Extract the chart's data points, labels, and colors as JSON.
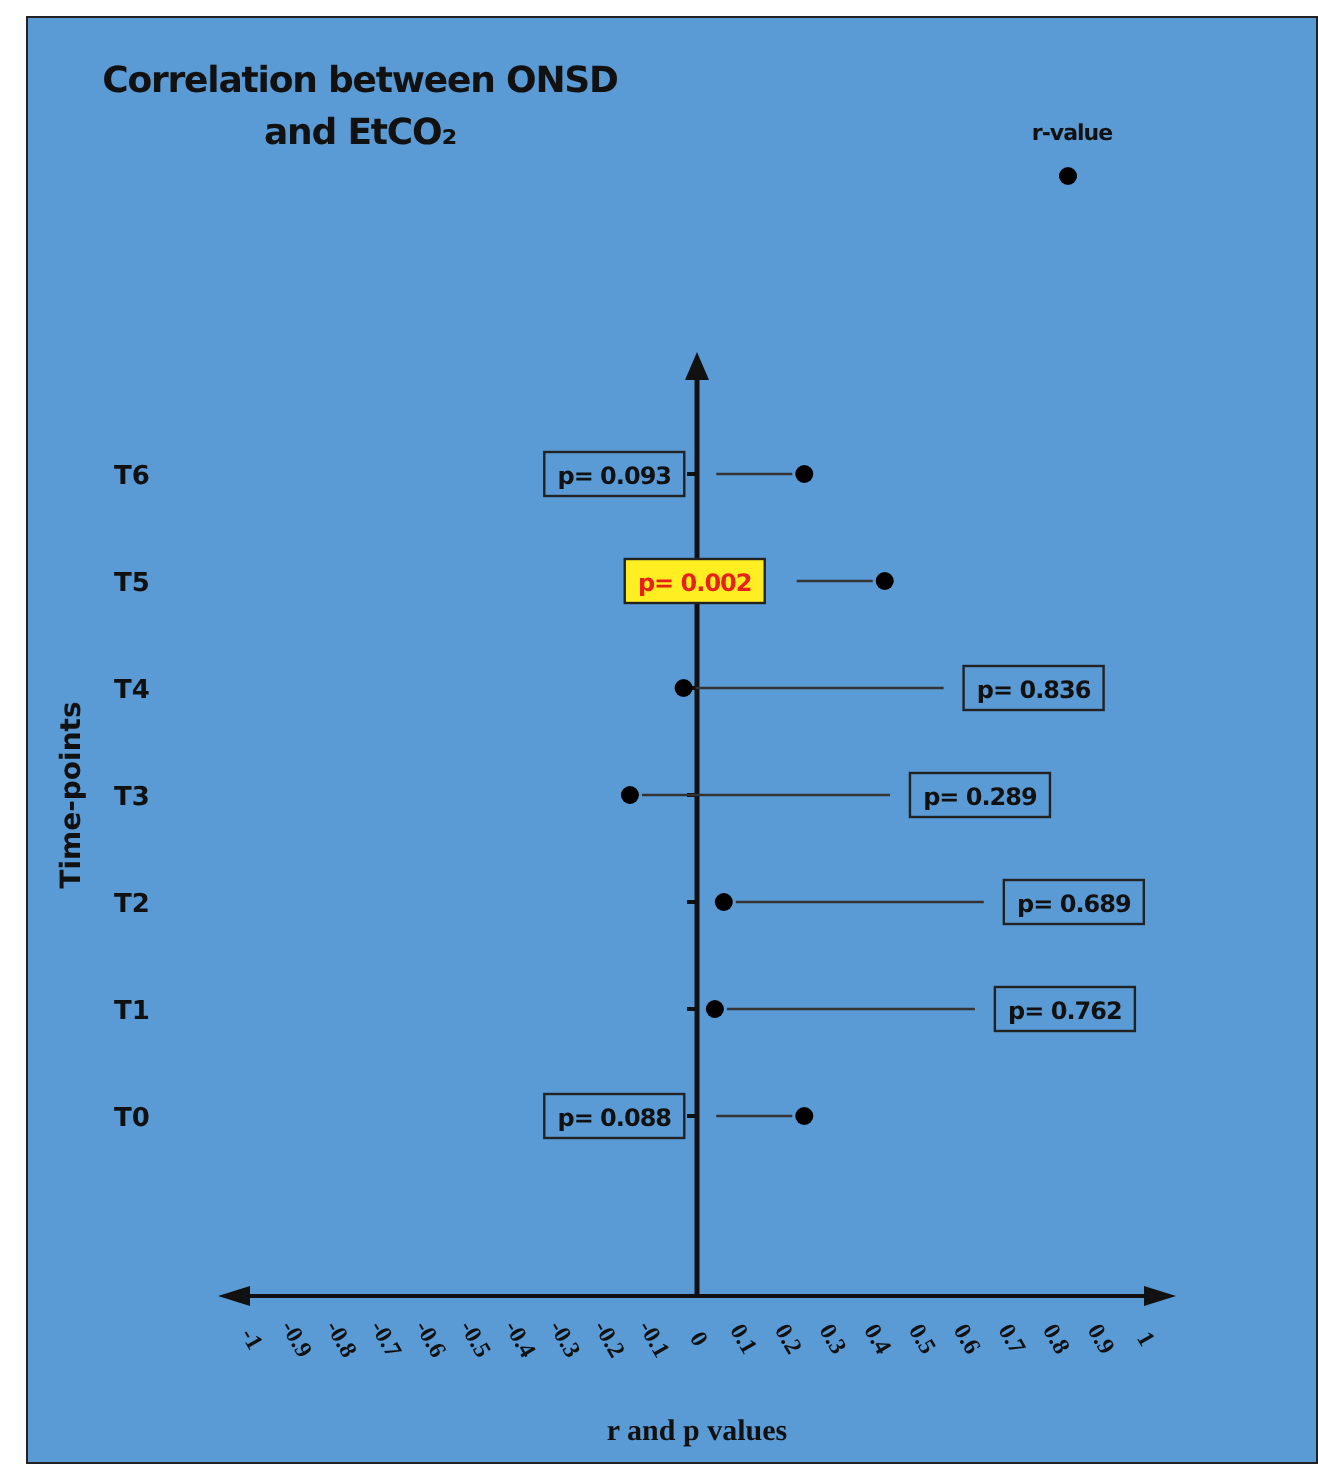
{
  "chart_data": {
    "type": "scatter",
    "title": "Correlation between ONSD and EtCO₂",
    "xlabel": "r and p values",
    "ylabel": "Time-points",
    "categories": [
      "T6",
      "T5",
      "T4",
      "T3",
      "T2",
      "T1",
      "T0"
    ],
    "orientation": "horizontal",
    "series": [
      {
        "name": "r-value",
        "color": "#000000",
        "values": [
          0.24,
          0.42,
          -0.03,
          -0.15,
          0.06,
          0.04,
          0.24
        ]
      }
    ],
    "xlim": [
      -1,
      1
    ],
    "xticks": [
      -1,
      -0.9,
      -0.8,
      -0.7,
      -0.6,
      -0.5,
      -0.4,
      -0.3,
      -0.2,
      -0.1,
      0,
      0.1,
      0.2,
      0.3,
      0.4,
      0.5,
      0.6,
      0.7,
      0.8,
      0.9,
      1
    ],
    "annotations": [
      "p= 0.093",
      "p= 0.002",
      "p= 0.836",
      "p= 0.289",
      "p= 0.689",
      "p= 0.762",
      "p= 0.088"
    ],
    "legend": "top right",
    "marker": "circle"
  }
}
